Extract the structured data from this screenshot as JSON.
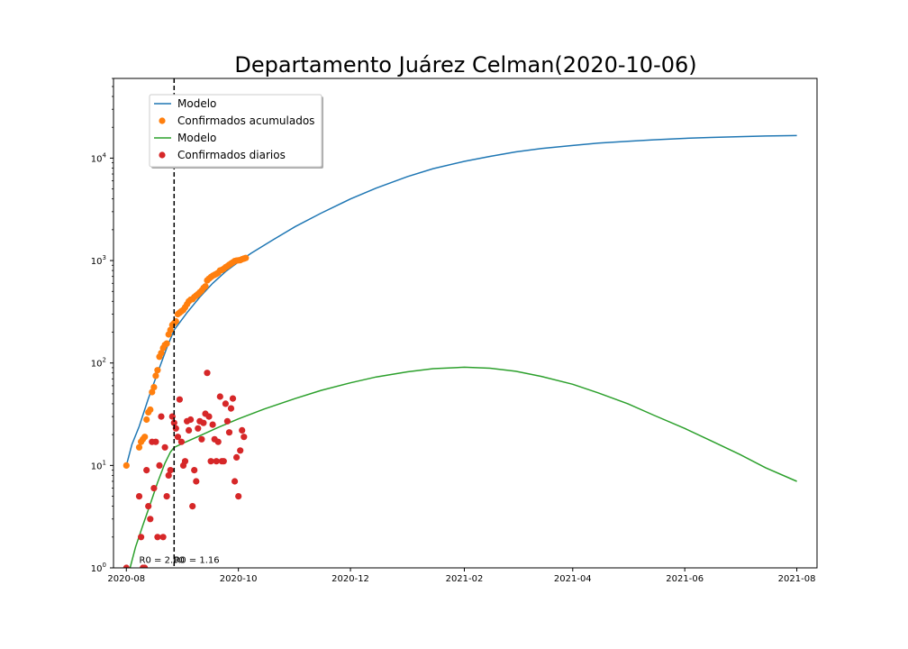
{
  "chart_data": {
    "type": "scatter",
    "title": "Departamento Juárez Celman(2020-10-06)",
    "y_scale": "log",
    "ylim": [
      1,
      60000
    ],
    "xlim": [
      "2020-07-25",
      "2021-08-12"
    ],
    "x_ticks": [
      "2020-08",
      "2020-10",
      "2020-12",
      "2021-02",
      "2021-04",
      "2021-06",
      "2021-08"
    ],
    "y_ticks": [
      {
        "value": 1,
        "label": "10^0"
      },
      {
        "value": 10,
        "label": "10^1"
      },
      {
        "value": 100,
        "label": "10^2"
      },
      {
        "value": 1000,
        "label": "10^3"
      },
      {
        "value": 10000,
        "label": "10^4"
      }
    ],
    "grid": false,
    "legend_position": "upper-left",
    "vline": {
      "x": "2020-08-27",
      "style": "dashed",
      "color": "#000000"
    },
    "annotations": [
      {
        "text": "R0 = 2.00",
        "x": "2020-08-08",
        "y": 1.1
      },
      {
        "text": "R0 = 1.16",
        "x": "2020-08-27",
        "y": 1.1
      }
    ],
    "series": [
      {
        "name": "Modelo",
        "kind": "line",
        "color": "#1f77b4",
        "points": [
          [
            "2020-08-01",
            10
          ],
          [
            "2020-08-04",
            16
          ],
          [
            "2020-08-08",
            24
          ],
          [
            "2020-08-13",
            45
          ],
          [
            "2020-08-18",
            80
          ],
          [
            "2020-08-23",
            140
          ],
          [
            "2020-08-27",
            210
          ],
          [
            "2020-09-03",
            310
          ],
          [
            "2020-09-10",
            440
          ],
          [
            "2020-09-17",
            600
          ],
          [
            "2020-09-24",
            780
          ],
          [
            "2020-10-01",
            970
          ],
          [
            "2020-10-08",
            1180
          ],
          [
            "2020-10-20",
            1600
          ],
          [
            "2020-11-01",
            2150
          ],
          [
            "2020-11-15",
            2900
          ],
          [
            "2020-12-01",
            4000
          ],
          [
            "2020-12-15",
            5100
          ],
          [
            "2021-01-01",
            6600
          ],
          [
            "2021-01-15",
            7900
          ],
          [
            "2021-02-01",
            9300
          ],
          [
            "2021-02-15",
            10400
          ],
          [
            "2021-03-01",
            11500
          ],
          [
            "2021-03-15",
            12400
          ],
          [
            "2021-04-01",
            13300
          ],
          [
            "2021-04-15",
            14000
          ],
          [
            "2021-05-01",
            14600
          ],
          [
            "2021-05-15",
            15100
          ],
          [
            "2021-06-01",
            15600
          ],
          [
            "2021-06-15",
            15900
          ],
          [
            "2021-07-01",
            16200
          ],
          [
            "2021-07-15",
            16450
          ],
          [
            "2021-08-01",
            16600
          ]
        ]
      },
      {
        "name": "Confirmados acumulados",
        "kind": "scatter",
        "color": "#ff7f0e",
        "points": [
          [
            "2020-08-01",
            10
          ],
          [
            "2020-08-08",
            15
          ],
          [
            "2020-08-09",
            17
          ],
          [
            "2020-08-10",
            18
          ],
          [
            "2020-08-11",
            19
          ],
          [
            "2020-08-12",
            28
          ],
          [
            "2020-08-13",
            33
          ],
          [
            "2020-08-14",
            35
          ],
          [
            "2020-08-15",
            52
          ],
          [
            "2020-08-16",
            58
          ],
          [
            "2020-08-17",
            75
          ],
          [
            "2020-08-18",
            85
          ],
          [
            "2020-08-19",
            115
          ],
          [
            "2020-08-20",
            125
          ],
          [
            "2020-08-21",
            140
          ],
          [
            "2020-08-22",
            150
          ],
          [
            "2020-08-23",
            155
          ],
          [
            "2020-08-24",
            190
          ],
          [
            "2020-08-25",
            210
          ],
          [
            "2020-08-26",
            235
          ],
          [
            "2020-08-27",
            245
          ],
          [
            "2020-08-28",
            255
          ],
          [
            "2020-08-29",
            300
          ],
          [
            "2020-08-30",
            310
          ],
          [
            "2020-08-31",
            320
          ],
          [
            "2020-09-01",
            330
          ],
          [
            "2020-09-02",
            350
          ],
          [
            "2020-09-03",
            375
          ],
          [
            "2020-09-04",
            400
          ],
          [
            "2020-09-05",
            415
          ],
          [
            "2020-09-06",
            420
          ],
          [
            "2020-09-07",
            440
          ],
          [
            "2020-09-08",
            455
          ],
          [
            "2020-09-09",
            470
          ],
          [
            "2020-09-10",
            490
          ],
          [
            "2020-09-11",
            510
          ],
          [
            "2020-09-12",
            540
          ],
          [
            "2020-09-13",
            560
          ],
          [
            "2020-09-14",
            640
          ],
          [
            "2020-09-15",
            665
          ],
          [
            "2020-09-16",
            690
          ],
          [
            "2020-09-17",
            710
          ],
          [
            "2020-09-18",
            725
          ],
          [
            "2020-09-19",
            740
          ],
          [
            "2020-09-20",
            760
          ],
          [
            "2020-09-21",
            800
          ],
          [
            "2020-09-22",
            810
          ],
          [
            "2020-09-23",
            830
          ],
          [
            "2020-09-24",
            860
          ],
          [
            "2020-09-25",
            880
          ],
          [
            "2020-09-26",
            910
          ],
          [
            "2020-09-27",
            935
          ],
          [
            "2020-09-28",
            960
          ],
          [
            "2020-09-29",
            990
          ],
          [
            "2020-09-30",
            1000
          ],
          [
            "2020-10-01",
            1005
          ],
          [
            "2020-10-02",
            1010
          ],
          [
            "2020-10-03",
            1030
          ],
          [
            "2020-10-04",
            1045
          ],
          [
            "2020-10-05",
            1060
          ]
        ]
      },
      {
        "name": "Modelo",
        "kind": "line",
        "color": "#2ca02c",
        "points": [
          [
            "2020-08-03",
            1
          ],
          [
            "2020-08-06",
            1.6
          ],
          [
            "2020-08-10",
            2.6
          ],
          [
            "2020-08-14",
            4.2
          ],
          [
            "2020-08-18",
            6.8
          ],
          [
            "2020-08-22",
            10.5
          ],
          [
            "2020-08-25",
            13.5
          ],
          [
            "2020-08-27",
            15
          ],
          [
            "2020-09-01",
            16.5
          ],
          [
            "2020-09-10",
            19.5
          ],
          [
            "2020-09-20",
            23.5
          ],
          [
            "2020-10-01",
            28.5
          ],
          [
            "2020-10-15",
            35.5
          ],
          [
            "2020-11-01",
            45
          ],
          [
            "2020-11-15",
            54
          ],
          [
            "2020-12-01",
            64
          ],
          [
            "2020-12-15",
            73
          ],
          [
            "2021-01-01",
            82
          ],
          [
            "2021-01-15",
            88
          ],
          [
            "2021-02-01",
            91
          ],
          [
            "2021-02-15",
            89
          ],
          [
            "2021-03-01",
            83
          ],
          [
            "2021-03-15",
            74
          ],
          [
            "2021-04-01",
            62
          ],
          [
            "2021-04-15",
            51
          ],
          [
            "2021-05-01",
            40
          ],
          [
            "2021-05-15",
            31
          ],
          [
            "2021-06-01",
            23
          ],
          [
            "2021-06-15",
            17.5
          ],
          [
            "2021-07-01",
            12.8
          ],
          [
            "2021-07-15",
            9.5
          ],
          [
            "2021-08-01",
            7
          ]
        ]
      },
      {
        "name": "Confirmados diarios",
        "kind": "scatter",
        "color": "#d62728",
        "points": [
          [
            "2020-08-01",
            1
          ],
          [
            "2020-08-08",
            5
          ],
          [
            "2020-08-09",
            2
          ],
          [
            "2020-08-10",
            1
          ],
          [
            "2020-08-11",
            1
          ],
          [
            "2020-08-12",
            9
          ],
          [
            "2020-08-13",
            4
          ],
          [
            "2020-08-14",
            3
          ],
          [
            "2020-08-15",
            17
          ],
          [
            "2020-08-16",
            6
          ],
          [
            "2020-08-17",
            17
          ],
          [
            "2020-08-18",
            2
          ],
          [
            "2020-08-19",
            10
          ],
          [
            "2020-08-20",
            30
          ],
          [
            "2020-08-21",
            2
          ],
          [
            "2020-08-22",
            15
          ],
          [
            "2020-08-23",
            5
          ],
          [
            "2020-08-24",
            8
          ],
          [
            "2020-08-25",
            9
          ],
          [
            "2020-08-26",
            30
          ],
          [
            "2020-08-27",
            26
          ],
          [
            "2020-08-28",
            23
          ],
          [
            "2020-08-29",
            19
          ],
          [
            "2020-08-30",
            44
          ],
          [
            "2020-08-31",
            17
          ],
          [
            "2020-09-01",
            10
          ],
          [
            "2020-09-02",
            11
          ],
          [
            "2020-09-03",
            27
          ],
          [
            "2020-09-04",
            22
          ],
          [
            "2020-09-05",
            28
          ],
          [
            "2020-09-06",
            4
          ],
          [
            "2020-09-07",
            9
          ],
          [
            "2020-09-08",
            7
          ],
          [
            "2020-09-09",
            23
          ],
          [
            "2020-09-10",
            27
          ],
          [
            "2020-09-11",
            18
          ],
          [
            "2020-09-12",
            26
          ],
          [
            "2020-09-13",
            32
          ],
          [
            "2020-09-14",
            80
          ],
          [
            "2020-09-15",
            30
          ],
          [
            "2020-09-16",
            11
          ],
          [
            "2020-09-17",
            25
          ],
          [
            "2020-09-18",
            18
          ],
          [
            "2020-09-19",
            11
          ],
          [
            "2020-09-20",
            17
          ],
          [
            "2020-09-21",
            47
          ],
          [
            "2020-09-22",
            11
          ],
          [
            "2020-09-23",
            11
          ],
          [
            "2020-09-24",
            40
          ],
          [
            "2020-09-25",
            27
          ],
          [
            "2020-09-26",
            21
          ],
          [
            "2020-09-27",
            36
          ],
          [
            "2020-09-28",
            45
          ],
          [
            "2020-09-29",
            7
          ],
          [
            "2020-09-30",
            12
          ],
          [
            "2020-10-01",
            5
          ],
          [
            "2020-10-02",
            14
          ],
          [
            "2020-10-03",
            22
          ],
          [
            "2020-10-04",
            19
          ]
        ]
      }
    ]
  }
}
